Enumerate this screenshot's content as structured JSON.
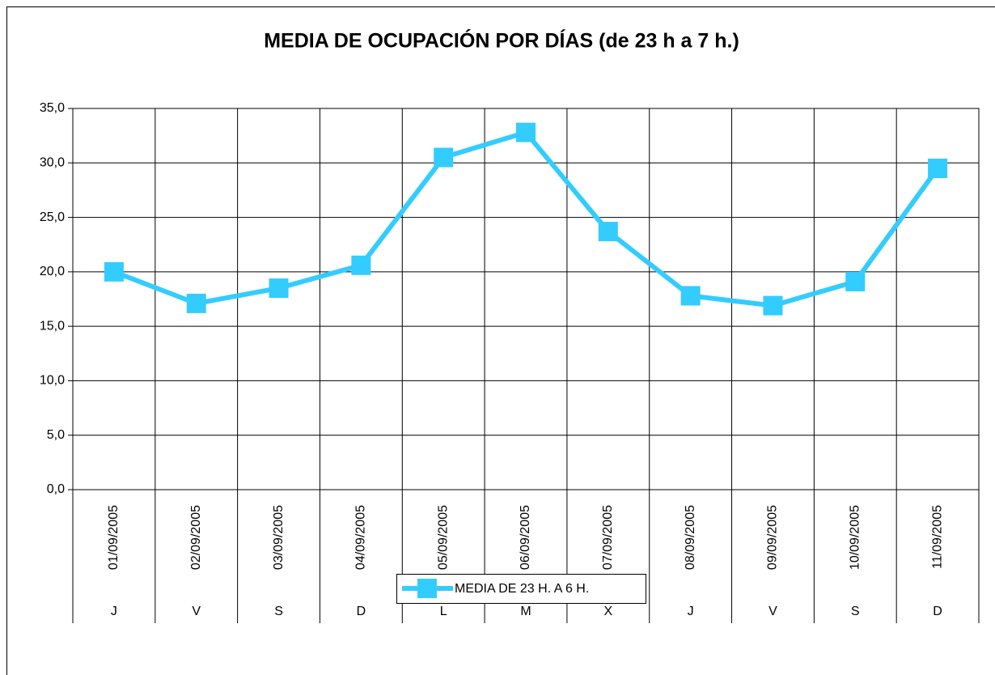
{
  "chart_data": {
    "type": "line",
    "title": "MEDIA DE OCUPACIÓN POR DÍAS (de 23 h a 7 h.)",
    "categories": [
      "01/09/2005",
      "02/09/2005",
      "03/09/2005",
      "04/09/2005",
      "05/09/2005",
      "06/09/2005",
      "07/09/2005",
      "08/09/2005",
      "09/09/2005",
      "10/09/2005",
      "11/09/2005"
    ],
    "weekdays": [
      "J",
      "V",
      "S",
      "D",
      "L",
      "M",
      "X",
      "J",
      "V",
      "S",
      "D"
    ],
    "series": [
      {
        "name": "MEDIA DE 23 H. A 6 H.",
        "color": "#33ccff",
        "values": [
          20.0,
          17.1,
          18.5,
          20.6,
          30.5,
          32.8,
          23.7,
          17.8,
          16.9,
          19.1,
          29.5
        ]
      }
    ],
    "ylim": [
      0,
      35
    ],
    "yticks": [
      {
        "value": 0,
        "label": "0,0"
      },
      {
        "value": 5,
        "label": "5,0"
      },
      {
        "value": 10,
        "label": "10,0"
      },
      {
        "value": 15,
        "label": "15,0"
      },
      {
        "value": 20,
        "label": "20,0"
      },
      {
        "value": 25,
        "label": "25,0"
      },
      {
        "value": 30,
        "label": "30,0"
      },
      {
        "value": 35,
        "label": "35,0"
      }
    ],
    "grid": true,
    "legend": "bottom"
  }
}
